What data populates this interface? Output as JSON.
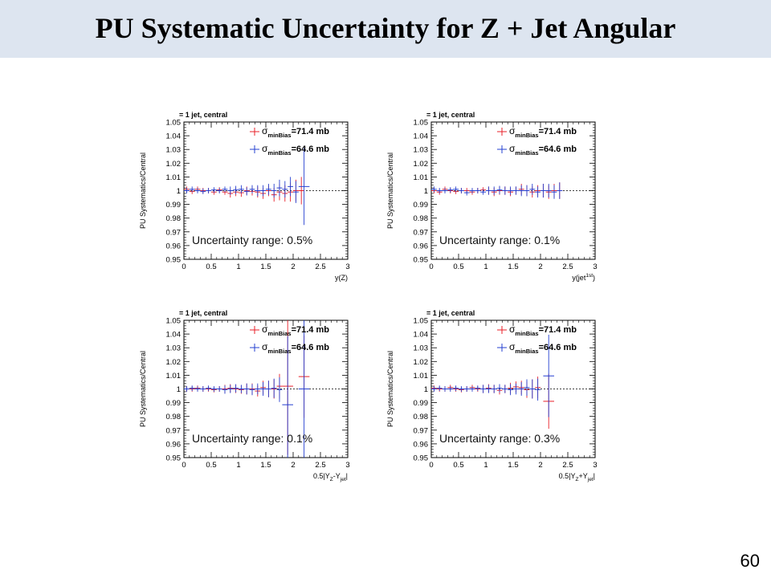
{
  "slide": {
    "title": "PU Systematic Uncertainty for Z + Jet Angular",
    "page_number": "60"
  },
  "colors": {
    "red": "#e8202a",
    "blue": "#2540d0",
    "axis": "#000000"
  },
  "chart_data": [
    {
      "type": "scatter",
      "header": "= 1 jet, central",
      "ylabel": "PU Systematics/Central",
      "xlabel": "y(Z)",
      "xlim": [
        0,
        3
      ],
      "ylim": [
        0.95,
        1.05
      ],
      "xticks": [
        "0",
        "0.5",
        "1",
        "1.5",
        "2",
        "2.5",
        "3"
      ],
      "yticks": [
        "0.95",
        "0.96",
        "0.97",
        "0.98",
        "0.99",
        "1",
        "1.01",
        "1.02",
        "1.03",
        "1.04",
        "1.05"
      ],
      "legend": [
        {
          "sym": "σ",
          "sub": "minBias",
          "val": "=71.4 mb"
        },
        {
          "sym": "σ",
          "sub": "minBias",
          "val": "=64.6 mb"
        }
      ],
      "annotation": "Uncertainty range: 0.5%",
      "series": [
        {
          "name": "=71.4 mb",
          "color": "#e8202a",
          "x": [
            0.05,
            0.15,
            0.25,
            0.35,
            0.45,
            0.55,
            0.65,
            0.75,
            0.85,
            0.95,
            1.05,
            1.15,
            1.25,
            1.35,
            1.45,
            1.55,
            1.65,
            1.75,
            1.85,
            1.95,
            2.05,
            2.15
          ],
          "y": [
            1.001,
            0.9995,
            1.001,
            1.0,
            1.0,
            0.999,
            1.0005,
            0.999,
            0.998,
            0.999,
            0.9985,
            1.0,
            0.9995,
            0.999,
            0.998,
            1.0,
            0.997,
            0.999,
            0.998,
            0.999,
            1.0,
            1.0
          ],
          "err": [
            0.002,
            0.002,
            0.002,
            0.002,
            0.002,
            0.002,
            0.002,
            0.002,
            0.003,
            0.003,
            0.003,
            0.003,
            0.003,
            0.004,
            0.004,
            0.004,
            0.005,
            0.006,
            0.006,
            0.007,
            0.008,
            0.01
          ]
        },
        {
          "name": "=64.6 mb",
          "color": "#2540d0",
          "x": [
            0.05,
            0.15,
            0.25,
            0.35,
            0.45,
            0.55,
            0.65,
            0.75,
            0.85,
            0.95,
            1.05,
            1.15,
            1.25,
            1.35,
            1.45,
            1.55,
            1.65,
            1.75,
            1.85,
            1.95,
            2.05,
            2.2
          ],
          "y": [
            1.0,
            1.001,
            1.0,
            0.9995,
            1.0,
            1.0005,
            1.0,
            1.001,
            1.0,
            1.0005,
            1.001,
            0.9995,
            1.001,
            1.0,
            1.0,
            1.001,
            1.0,
            1.002,
            1.001,
            1.003,
            0.999,
            1.003
          ],
          "err": [
            0.002,
            0.002,
            0.002,
            0.002,
            0.002,
            0.002,
            0.002,
            0.002,
            0.003,
            0.003,
            0.003,
            0.003,
            0.003,
            0.004,
            0.004,
            0.004,
            0.005,
            0.006,
            0.006,
            0.007,
            0.008,
            0.028
          ]
        }
      ]
    },
    {
      "type": "scatter",
      "header": "= 1 jet, central",
      "ylabel": "PU Systematics/Central",
      "xlabel": "y(jet",
      "xlabel_sup": "1st",
      "xlabel_tail": ")",
      "xlim": [
        0,
        3
      ],
      "ylim": [
        0.95,
        1.05
      ],
      "xticks": [
        "0",
        "0.5",
        "1",
        "1.5",
        "2",
        "2.5",
        "3"
      ],
      "yticks": [
        "0.95",
        "0.96",
        "0.97",
        "0.98",
        "0.99",
        "1",
        "1.01",
        "1.02",
        "1.03",
        "1.04",
        "1.05"
      ],
      "legend": [
        {
          "sym": "σ",
          "sub": "minBias",
          "val": "=71.4 mb"
        },
        {
          "sym": "σ",
          "sub": "minBias",
          "val": "=64.6 mb"
        }
      ],
      "annotation": "Uncertainty range: 0.1%",
      "series": [
        {
          "name": "=71.4 mb",
          "color": "#e8202a",
          "x": [
            0.05,
            0.15,
            0.25,
            0.35,
            0.45,
            0.55,
            0.65,
            0.75,
            0.85,
            0.95,
            1.05,
            1.15,
            1.25,
            1.35,
            1.45,
            1.55,
            1.65,
            1.75,
            1.85,
            1.95,
            2.05,
            2.15,
            2.25,
            2.35
          ],
          "y": [
            1.0,
            0.999,
            1.001,
            1.0,
            0.9995,
            1.0,
            1.0,
            0.999,
            1.0,
            1.0005,
            1.0,
            0.999,
            1.0,
            1.0,
            0.999,
            1.0,
            1.001,
            1.0,
            0.999,
            1.0,
            1.0,
            0.999,
            1.0,
            1.0
          ],
          "err": [
            0.002,
            0.002,
            0.002,
            0.002,
            0.002,
            0.002,
            0.002,
            0.002,
            0.002,
            0.002,
            0.003,
            0.003,
            0.003,
            0.003,
            0.003,
            0.003,
            0.004,
            0.004,
            0.004,
            0.004,
            0.005,
            0.005,
            0.005,
            0.006
          ]
        },
        {
          "name": "=64.6 mb",
          "color": "#2540d0",
          "x": [
            0.05,
            0.15,
            0.25,
            0.35,
            0.45,
            0.55,
            0.65,
            0.75,
            0.85,
            0.95,
            1.05,
            1.15,
            1.25,
            1.35,
            1.45,
            1.55,
            1.65,
            1.75,
            1.85,
            1.95,
            2.05,
            2.15,
            2.25,
            2.35
          ],
          "y": [
            1.001,
            1.0,
            1.0,
            1.0005,
            1.001,
            1.0,
            0.9985,
            1.0,
            1.0,
            0.999,
            1.0,
            1.0,
            1.0005,
            1.0,
            1.0,
            1.0,
            1.0,
            1.0,
            1.001,
            0.999,
            1.0,
            1.0,
            0.999,
            1.0
          ],
          "err": [
            0.002,
            0.002,
            0.002,
            0.002,
            0.002,
            0.002,
            0.002,
            0.002,
            0.002,
            0.002,
            0.003,
            0.003,
            0.003,
            0.003,
            0.003,
            0.003,
            0.004,
            0.004,
            0.004,
            0.004,
            0.005,
            0.005,
            0.005,
            0.006
          ]
        }
      ]
    },
    {
      "type": "scatter",
      "header": "= 1 jet, central",
      "ylabel": "PU Systematics/Central",
      "xlabel": "0.5|Y",
      "xlabel_sub": "Z",
      "xlabel_mid": "-Y",
      "xlabel_sub2": "jet",
      "xlabel_tail": "|",
      "xlim": [
        0,
        3
      ],
      "ylim": [
        0.95,
        1.05
      ],
      "xticks": [
        "0",
        "0.5",
        "1",
        "1.5",
        "2",
        "2.5",
        "3"
      ],
      "yticks": [
        "0.95",
        "0.96",
        "0.97",
        "0.98",
        "0.99",
        "1",
        "1.01",
        "1.02",
        "1.03",
        "1.04",
        "1.05"
      ],
      "legend": [
        {
          "sym": "σ",
          "sub": "minBias",
          "val": "=71.4 mb"
        },
        {
          "sym": "σ",
          "sub": "minBias",
          "val": "=64.6 mb"
        }
      ],
      "annotation": "Uncertainty range: 0.1%",
      "series": [
        {
          "name": "=71.4 mb",
          "color": "#e8202a",
          "x": [
            0.05,
            0.15,
            0.25,
            0.35,
            0.45,
            0.55,
            0.65,
            0.75,
            0.85,
            0.95,
            1.05,
            1.15,
            1.25,
            1.35,
            1.45,
            1.55,
            1.65,
            1.75,
            1.9,
            2.2
          ],
          "y": [
            1.0,
            1.0,
            1.0005,
            1.0,
            1.0,
            0.9995,
            1.0,
            1.0,
            1.0005,
            1.0,
            0.9995,
            1.0,
            1.0,
            0.9985,
            1.001,
            1.0,
            1.0,
            1.002,
            1.002,
            1.009
          ],
          "err": [
            0.002,
            0.002,
            0.002,
            0.002,
            0.002,
            0.002,
            0.002,
            0.003,
            0.003,
            0.003,
            0.003,
            0.004,
            0.004,
            0.004,
            0.005,
            0.006,
            0.007,
            0.009,
            0.05,
            0.03
          ]
        },
        {
          "name": "=64.6 mb",
          "color": "#2540d0",
          "x": [
            0.05,
            0.15,
            0.25,
            0.35,
            0.45,
            0.55,
            0.65,
            0.75,
            0.85,
            0.95,
            1.05,
            1.15,
            1.25,
            1.35,
            1.45,
            1.55,
            1.65,
            1.75,
            1.9,
            2.2
          ],
          "y": [
            1.0,
            1.0005,
            1.0,
            1.0,
            1.0005,
            1.0,
            1.0,
            0.9995,
            1.0,
            1.0005,
            1.0,
            1.0,
            0.9995,
            1.0,
            1.0,
            1.0,
            1.0005,
            0.9995,
            0.9885,
            1.0
          ],
          "err": [
            0.002,
            0.002,
            0.002,
            0.002,
            0.002,
            0.002,
            0.002,
            0.003,
            0.003,
            0.003,
            0.003,
            0.004,
            0.004,
            0.004,
            0.005,
            0.006,
            0.007,
            0.009,
            0.05,
            0.05
          ]
        }
      ]
    },
    {
      "type": "scatter",
      "header": "= 1 jet, central",
      "ylabel": "PU Systematics/Central",
      "xlabel": "0.5|Y",
      "xlabel_sub": "Z",
      "xlabel_mid": "+Y",
      "xlabel_sub2": "jet",
      "xlabel_tail": "|",
      "xlim": [
        0,
        3
      ],
      "ylim": [
        0.95,
        1.05
      ],
      "xticks": [
        "0",
        "0.5",
        "1",
        "1.5",
        "2",
        "2.5",
        "3"
      ],
      "yticks": [
        "0.95",
        "0.96",
        "0.97",
        "0.98",
        "0.99",
        "1",
        "1.01",
        "1.02",
        "1.03",
        "1.04",
        "1.05"
      ],
      "legend": [
        {
          "sym": "σ",
          "sub": "minBias",
          "val": "=71.4 mb"
        },
        {
          "sym": "σ",
          "sub": "minBias",
          "val": "=64.6 mb"
        }
      ],
      "annotation": "Uncertainty range: 0.3%",
      "series": [
        {
          "name": "=71.4 mb",
          "color": "#e8202a",
          "x": [
            0.05,
            0.15,
            0.25,
            0.35,
            0.45,
            0.55,
            0.65,
            0.75,
            0.85,
            0.95,
            1.05,
            1.15,
            1.25,
            1.35,
            1.45,
            1.55,
            1.65,
            1.75,
            1.85,
            1.95,
            2.15
          ],
          "y": [
            1.0005,
            1.0,
            1.0,
            1.001,
            1.0,
            0.9995,
            1.0,
            1.001,
            1.0,
            1.0,
            1.0005,
            1.0,
            0.999,
            1.0,
            1.0005,
            1.0015,
            1.001,
            0.9995,
            1.0,
            1.001,
            0.991
          ],
          "err": [
            0.002,
            0.002,
            0.002,
            0.002,
            0.002,
            0.002,
            0.002,
            0.002,
            0.002,
            0.003,
            0.003,
            0.003,
            0.003,
            0.003,
            0.004,
            0.004,
            0.005,
            0.006,
            0.007,
            0.008,
            0.02
          ]
        },
        {
          "name": "=64.6 mb",
          "color": "#2540d0",
          "x": [
            0.05,
            0.15,
            0.25,
            0.35,
            0.45,
            0.55,
            0.65,
            0.75,
            0.85,
            0.95,
            1.05,
            1.15,
            1.25,
            1.35,
            1.45,
            1.55,
            1.65,
            1.75,
            1.85,
            1.95,
            2.15
          ],
          "y": [
            1.0,
            1.0005,
            1.0,
            1.0,
            1.0005,
            1.0,
            1.0,
            1.0,
            1.0005,
            1.0,
            1.0,
            1.0,
            1.0005,
            1.0,
            0.9995,
            1.0,
            1.0,
            1.001,
            1.0,
            0.9995,
            1.0095
          ],
          "err": [
            0.002,
            0.002,
            0.002,
            0.002,
            0.002,
            0.002,
            0.002,
            0.002,
            0.002,
            0.003,
            0.003,
            0.003,
            0.003,
            0.003,
            0.004,
            0.004,
            0.005,
            0.006,
            0.007,
            0.008,
            0.03
          ]
        }
      ]
    }
  ]
}
